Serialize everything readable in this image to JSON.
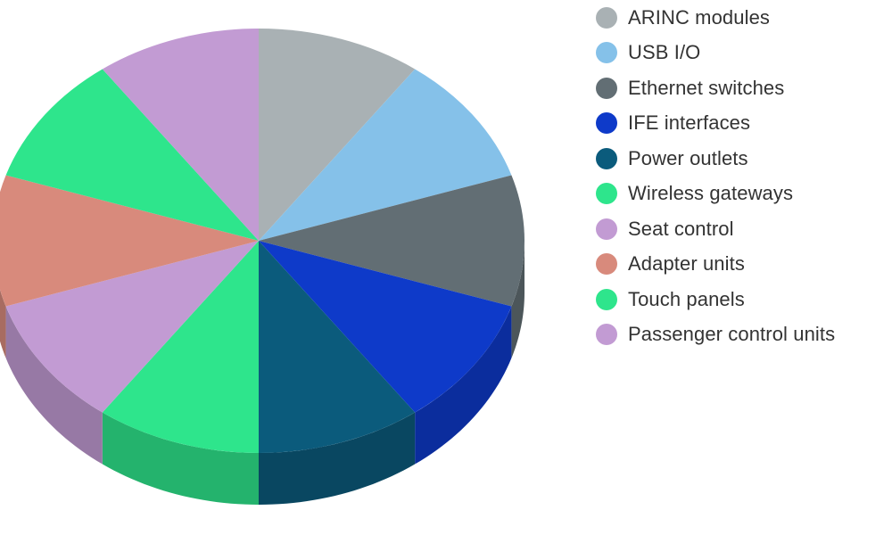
{
  "chart_data": {
    "type": "pie",
    "style": "3d",
    "title": "",
    "start": "top",
    "direction": "clockwise",
    "legend_position": "right",
    "labels": [
      "ARINC modules",
      "USB I/O",
      "Ethernet switches",
      "IFE interfaces",
      "Power outlets",
      "Wireless gateways",
      "Seat control",
      "Adapter units",
      "Touch panels",
      "Passenger control units"
    ],
    "values": [
      10,
      10,
      10,
      10,
      10,
      10,
      10,
      10,
      10,
      10
    ],
    "colors": [
      "#a9b1b4",
      "#85c1e9",
      "#626e74",
      "#0e3ac9",
      "#0b5b7c",
      "#2ee58c",
      "#c29bd3",
      "#d88a7c",
      "#2ee58c",
      "#c29bd3"
    ]
  }
}
